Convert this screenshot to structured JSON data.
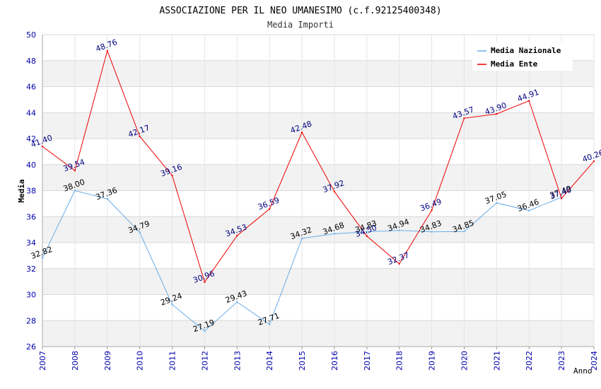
{
  "chart_data": {
    "type": "line",
    "title": "ASSOCIAZIONE PER IL NEO UMANESIMO (c.f.92125400348)",
    "subtitle": "Media Importi",
    "xlabel": "Anno",
    "ylabel": "Media",
    "ylim": [
      26,
      50
    ],
    "yticks": [
      26,
      28,
      30,
      32,
      34,
      36,
      38,
      40,
      42,
      44,
      46,
      48,
      50
    ],
    "grid": true,
    "legend_position": "top-right",
    "x": [
      "2007",
      "2008",
      "2009",
      "2010",
      "2011",
      "2012",
      "2013",
      "2014",
      "2015",
      "2016",
      "2017",
      "2018",
      "2019",
      "2020",
      "2021",
      "2022",
      "2023",
      "2024"
    ],
    "series": [
      {
        "name": "Media Nazionale",
        "color": "#6aaee8",
        "label_color": "#000000",
        "values": [
          32.82,
          38.0,
          37.36,
          34.79,
          29.24,
          27.19,
          29.43,
          27.71,
          34.32,
          34.68,
          34.83,
          34.94,
          34.83,
          34.85,
          37.05,
          36.46,
          37.49,
          null
        ],
        "labels": [
          "32.82",
          "38.00",
          "37.36",
          "34.79",
          "29.24",
          "27.19",
          "29.43",
          "27.71",
          "34.32",
          "34.68",
          "34.83",
          "34.94",
          "34.83",
          "34.85",
          "37.05",
          "36.46",
          "37.49",
          ""
        ]
      },
      {
        "name": "Media Ente",
        "color": "#ee0000",
        "label_color": "#000080",
        "values": [
          41.4,
          39.54,
          48.76,
          42.17,
          39.16,
          30.96,
          34.53,
          36.59,
          42.48,
          37.92,
          34.5,
          32.37,
          36.49,
          43.57,
          43.9,
          44.91,
          37.4,
          40.26
        ],
        "labels": [
          "41.40",
          "39.54",
          "48.76",
          "42.17",
          "39.16",
          "30.96",
          "34.53",
          "36.59",
          "42.48",
          "37.92",
          "34.50",
          "32.37",
          "36.49",
          "43.57",
          "43.90",
          "44.91",
          "37.40",
          "40.26"
        ]
      }
    ]
  }
}
